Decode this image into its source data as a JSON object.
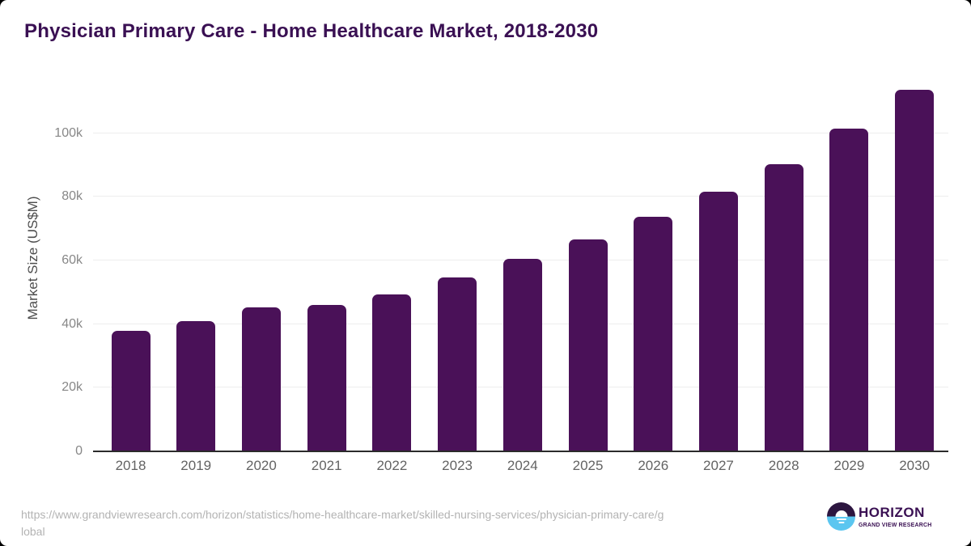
{
  "page": {
    "title": "Physician Primary Care - Home Healthcare Market, 2018-2030"
  },
  "footer": {
    "source_url_lines": [
      "https://www.grandviewresearch.com/horizon/statistics/home-healthcare-market/skilled-nursing-services/physician-primary-care/g",
      "lobal"
    ],
    "logo": {
      "brand": "HORIZON",
      "tagline": "GRAND VIEW RESEARCH"
    }
  },
  "colors": {
    "bar": "#4a1158",
    "title_text": "#3a1053",
    "grid_line": "#ededed",
    "axis_line": "#2b2b2b",
    "y_tick_text": "#878787",
    "x_tick_text": "#636363",
    "axis_title_text": "#4d4d4d",
    "source_text": "#b3b3b3",
    "logo_purple": "#3a1053",
    "logo_blue": "#5bc6f0",
    "logo_dark_half": "#2d1640"
  },
  "chart_data": {
    "type": "bar",
    "title": "Physician Primary Care - Home Healthcare Market, 2018-2030",
    "categories": [
      "2018",
      "2019",
      "2020",
      "2021",
      "2022",
      "2023",
      "2024",
      "2025",
      "2026",
      "2027",
      "2028",
      "2029",
      "2030"
    ],
    "values": [
      37800,
      40900,
      45300,
      45900,
      49200,
      54700,
      60500,
      66600,
      73800,
      81600,
      90300,
      101400,
      113700
    ],
    "xlabel": "",
    "ylabel": "Market Size (US$M)",
    "units": "US$M",
    "ylim": [
      0,
      120000
    ],
    "yticks": [
      0,
      20000,
      40000,
      60000,
      80000,
      100000
    ],
    "ytick_labels": [
      "0",
      "20k",
      "40k",
      "60k",
      "80k",
      "100k"
    ],
    "grid": true,
    "legend": false,
    "bar_color": "#4a1158"
  }
}
